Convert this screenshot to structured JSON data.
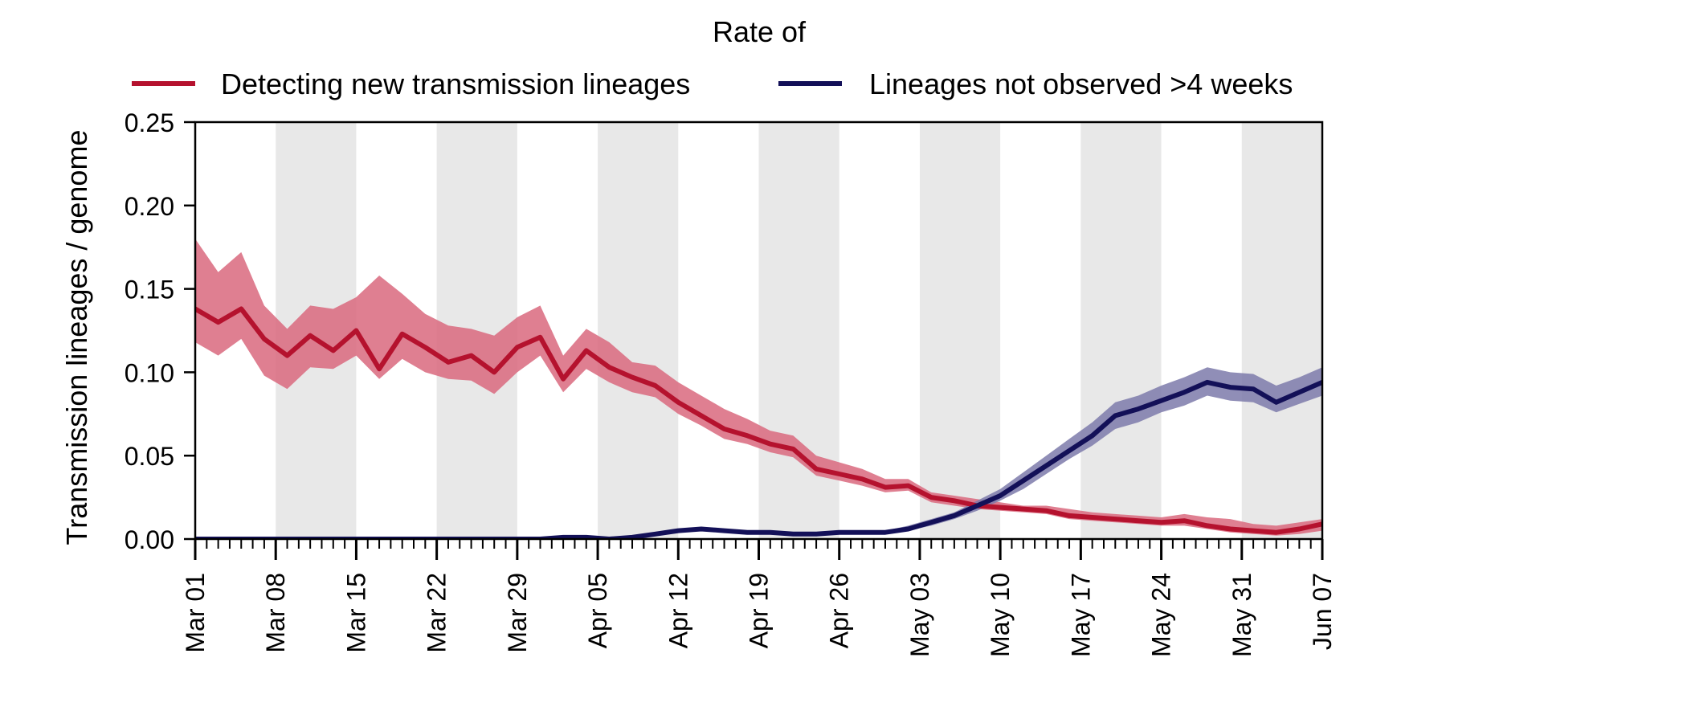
{
  "chart_data": {
    "type": "line",
    "legend": {
      "title": "Rate of",
      "placement": "top"
    },
    "ylabel": "Transmission lineages / genome",
    "xlabel": "",
    "ylim": [
      0,
      0.25
    ],
    "yticks": [
      {
        "value": 0.0,
        "label": "0.00"
      },
      {
        "value": 0.05,
        "label": "0.05"
      },
      {
        "value": 0.1,
        "label": "0.10"
      },
      {
        "value": 0.15,
        "label": "0.15"
      },
      {
        "value": 0.2,
        "label": "0.20"
      },
      {
        "value": 0.25,
        "label": "0.25"
      }
    ],
    "xlim": [
      "Mar 01",
      "Jun 07"
    ],
    "xticks": [
      "Mar 01",
      "Mar 08",
      "Mar 15",
      "Mar 22",
      "Mar 29",
      "Apr 05",
      "Apr 12",
      "Apr 19",
      "Apr 26",
      "May 03",
      "May 10",
      "May 17",
      "May 24",
      "May 31",
      "Jun 07"
    ],
    "shaded_weeks": [
      [
        "Mar 08",
        "Mar 15"
      ],
      [
        "Mar 22",
        "Mar 29"
      ],
      [
        "Apr 05",
        "Apr 12"
      ],
      [
        "Apr 19",
        "Apr 26"
      ],
      [
        "May 03",
        "May 10"
      ],
      [
        "May 17",
        "May 24"
      ],
      [
        "May 31",
        "Jun 07"
      ]
    ],
    "series": [
      {
        "name": "Detecting new transmission lineages",
        "color": "#b5122e",
        "band_color": "#d9697e",
        "points": [
          [
            "Mar 01",
            0.138,
            0.118,
            0.18
          ],
          [
            "Mar 03",
            0.13,
            0.11,
            0.16
          ],
          [
            "Mar 05",
            0.138,
            0.12,
            0.172
          ],
          [
            "Mar 07",
            0.12,
            0.098,
            0.14
          ],
          [
            "Mar 09",
            0.11,
            0.09,
            0.126
          ],
          [
            "Mar 11",
            0.122,
            0.103,
            0.14
          ],
          [
            "Mar 13",
            0.113,
            0.102,
            0.138
          ],
          [
            "Mar 15",
            0.125,
            0.11,
            0.145
          ],
          [
            "Mar 17",
            0.102,
            0.096,
            0.158
          ],
          [
            "Mar 19",
            0.123,
            0.108,
            0.147
          ],
          [
            "Mar 21",
            0.115,
            0.1,
            0.135
          ],
          [
            "Mar 23",
            0.106,
            0.096,
            0.128
          ],
          [
            "Mar 25",
            0.11,
            0.095,
            0.126
          ],
          [
            "Mar 27",
            0.1,
            0.087,
            0.122
          ],
          [
            "Mar 29",
            0.115,
            0.1,
            0.133
          ],
          [
            "Mar 31",
            0.121,
            0.11,
            0.14
          ],
          [
            "Apr 02",
            0.096,
            0.088,
            0.11
          ],
          [
            "Apr 04",
            0.113,
            0.102,
            0.126
          ],
          [
            "Apr 06",
            0.103,
            0.094,
            0.118
          ],
          [
            "Apr 08",
            0.097,
            0.088,
            0.106
          ],
          [
            "Apr 10",
            0.092,
            0.085,
            0.104
          ],
          [
            "Apr 12",
            0.082,
            0.075,
            0.094
          ],
          [
            "Apr 14",
            0.074,
            0.068,
            0.086
          ],
          [
            "Apr 16",
            0.066,
            0.06,
            0.078
          ],
          [
            "Apr 18",
            0.062,
            0.057,
            0.072
          ],
          [
            "Apr 20",
            0.057,
            0.052,
            0.065
          ],
          [
            "Apr 22",
            0.054,
            0.049,
            0.062
          ],
          [
            "Apr 24",
            0.042,
            0.038,
            0.05
          ],
          [
            "Apr 26",
            0.039,
            0.035,
            0.046
          ],
          [
            "Apr 28",
            0.036,
            0.032,
            0.042
          ],
          [
            "Apr 30",
            0.031,
            0.028,
            0.036
          ],
          [
            "May 02",
            0.032,
            0.029,
            0.036
          ],
          [
            "May 04",
            0.025,
            0.022,
            0.028
          ],
          [
            "May 06",
            0.023,
            0.02,
            0.026
          ],
          [
            "May 08",
            0.02,
            0.018,
            0.024
          ],
          [
            "May 10",
            0.019,
            0.017,
            0.022
          ],
          [
            "May 12",
            0.018,
            0.016,
            0.02
          ],
          [
            "May 14",
            0.017,
            0.015,
            0.02
          ],
          [
            "May 16",
            0.014,
            0.012,
            0.018
          ],
          [
            "May 18",
            0.013,
            0.011,
            0.016
          ],
          [
            "May 20",
            0.012,
            0.01,
            0.015
          ],
          [
            "May 22",
            0.011,
            0.009,
            0.014
          ],
          [
            "May 24",
            0.01,
            0.008,
            0.013
          ],
          [
            "May 26",
            0.011,
            0.008,
            0.015
          ],
          [
            "May 28",
            0.008,
            0.006,
            0.013
          ],
          [
            "May 30",
            0.006,
            0.004,
            0.012
          ],
          [
            "Jun 01",
            0.005,
            0.003,
            0.009
          ],
          [
            "Jun 03",
            0.004,
            0.002,
            0.008
          ],
          [
            "Jun 05",
            0.006,
            0.003,
            0.01
          ],
          [
            "Jun 07",
            0.009,
            0.005,
            0.012
          ]
        ]
      },
      {
        "name": "Lineages not observed >4 weeks",
        "color": "#131058",
        "band_color": "#7d7aaa",
        "points": [
          [
            "Mar 01",
            0.0,
            0.0,
            0.0
          ],
          [
            "Mar 03",
            0.0,
            0.0,
            0.0
          ],
          [
            "Mar 05",
            0.0,
            0.0,
            0.0
          ],
          [
            "Mar 07",
            0.0,
            0.0,
            0.0
          ],
          [
            "Mar 09",
            0.0,
            0.0,
            0.0
          ],
          [
            "Mar 11",
            0.0,
            0.0,
            0.0
          ],
          [
            "Mar 13",
            0.0,
            0.0,
            0.0
          ],
          [
            "Mar 15",
            0.0,
            0.0,
            0.0
          ],
          [
            "Mar 17",
            0.0,
            0.0,
            0.0
          ],
          [
            "Mar 19",
            0.0,
            0.0,
            0.0
          ],
          [
            "Mar 21",
            0.0,
            0.0,
            0.0
          ],
          [
            "Mar 23",
            0.0,
            0.0,
            0.0
          ],
          [
            "Mar 25",
            0.0,
            0.0,
            0.0
          ],
          [
            "Mar 27",
            0.0,
            0.0,
            0.0
          ],
          [
            "Mar 29",
            0.0,
            0.0,
            0.0
          ],
          [
            "Mar 31",
            0.0,
            0.0,
            0.001
          ],
          [
            "Apr 02",
            0.001,
            0.0,
            0.001
          ],
          [
            "Apr 04",
            0.001,
            0.0,
            0.001
          ],
          [
            "Apr 06",
            0.0,
            0.0,
            0.001
          ],
          [
            "Apr 08",
            0.001,
            0.0,
            0.002
          ],
          [
            "Apr 10",
            0.003,
            0.002,
            0.004
          ],
          [
            "Apr 12",
            0.005,
            0.004,
            0.006
          ],
          [
            "Apr 14",
            0.006,
            0.005,
            0.007
          ],
          [
            "Apr 16",
            0.005,
            0.004,
            0.006
          ],
          [
            "Apr 18",
            0.004,
            0.003,
            0.005
          ],
          [
            "Apr 20",
            0.004,
            0.003,
            0.005
          ],
          [
            "Apr 22",
            0.003,
            0.002,
            0.004
          ],
          [
            "Apr 24",
            0.003,
            0.002,
            0.004
          ],
          [
            "Apr 26",
            0.004,
            0.003,
            0.005
          ],
          [
            "Apr 28",
            0.004,
            0.003,
            0.005
          ],
          [
            "Apr 30",
            0.004,
            0.003,
            0.005
          ],
          [
            "May 02",
            0.006,
            0.005,
            0.008
          ],
          [
            "May 04",
            0.01,
            0.008,
            0.012
          ],
          [
            "May 06",
            0.014,
            0.012,
            0.016
          ],
          [
            "May 08",
            0.02,
            0.017,
            0.023
          ],
          [
            "May 10",
            0.026,
            0.023,
            0.03
          ],
          [
            "May 12",
            0.035,
            0.03,
            0.04
          ],
          [
            "May 14",
            0.044,
            0.039,
            0.05
          ],
          [
            "May 16",
            0.053,
            0.048,
            0.06
          ],
          [
            "May 18",
            0.062,
            0.056,
            0.07
          ],
          [
            "May 20",
            0.074,
            0.066,
            0.082
          ],
          [
            "May 22",
            0.078,
            0.07,
            0.086
          ],
          [
            "May 24",
            0.083,
            0.076,
            0.092
          ],
          [
            "May 26",
            0.088,
            0.08,
            0.097
          ],
          [
            "May 28",
            0.094,
            0.086,
            0.103
          ],
          [
            "May 30",
            0.091,
            0.083,
            0.1
          ],
          [
            "Jun 01",
            0.09,
            0.082,
            0.099
          ],
          [
            "Jun 03",
            0.082,
            0.076,
            0.092
          ],
          [
            "Jun 05",
            0.088,
            0.081,
            0.097
          ],
          [
            "Jun 07",
            0.094,
            0.086,
            0.103
          ]
        ]
      }
    ]
  }
}
